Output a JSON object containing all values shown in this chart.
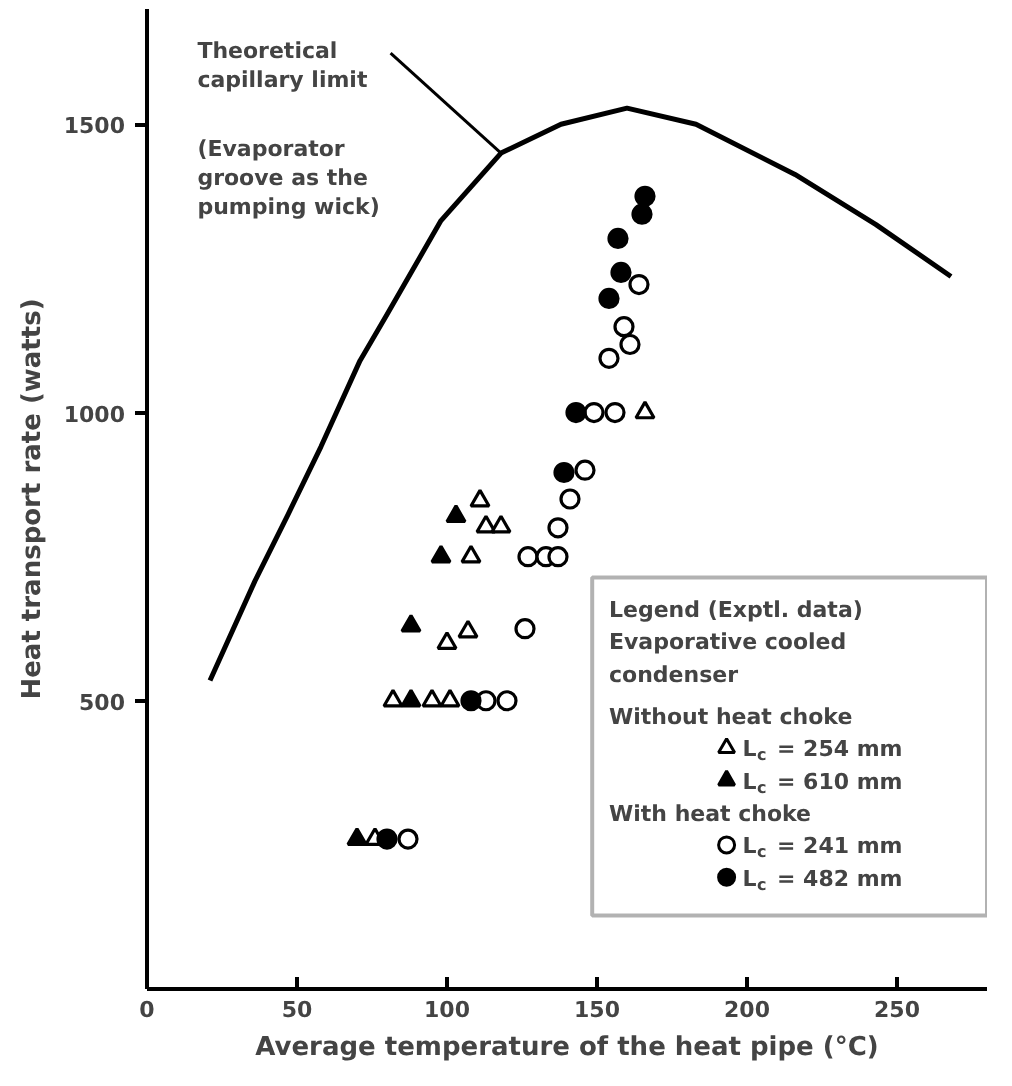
{
  "chart_data": {
    "type": "scatter",
    "xlabel": "Average temperature of the heat pipe (°C)",
    "ylabel": "Heat transport rate (watts)",
    "xlim": [
      0,
      280
    ],
    "ylim": [
      0,
      1700
    ],
    "xticks": [
      0,
      50,
      100,
      150,
      200,
      250
    ],
    "yticks": [
      500,
      1000,
      1500
    ],
    "grid": false,
    "legend": "bottom right",
    "legend_title": "Legend (Exptl. data)",
    "annotations": [
      {
        "text": "Theoretical capillary limit",
        "x": 118,
        "y": 1450
      },
      "(Evaporator groove as the pumping wick)",
      "Evaporative cooled condenser",
      "Without heat choke",
      "With heat choke"
    ],
    "series": [
      {
        "type": "line",
        "color": "#000000",
        "x": [
          21,
          36,
          47,
          58,
          71,
          80,
          98,
          118,
          138,
          160,
          183,
          216,
          243,
          268
        ],
        "values": [
          535,
          708,
          823,
          941,
          1090,
          1170,
          1333,
          1450,
          1500,
          1528,
          1500,
          1413,
          1326,
          1236
        ]
      },
      {
        "name": "L$_{c}$ = 254 mm",
        "color": "#000000",
        "marker": "triangle-open",
        "x": [
          76,
          82,
          95,
          101,
          100,
          107,
          108,
          111,
          113,
          118,
          166
        ],
        "values": [
          260,
          500,
          500,
          500,
          600,
          620,
          750,
          847,
          802,
          802,
          1000
        ]
      },
      {
        "name": "L$_{c}$ = 610 mm",
        "color": "#000000",
        "marker": "triangle",
        "x": [
          70,
          88,
          88,
          98,
          103
        ],
        "values": [
          260,
          500,
          630,
          750,
          820
        ]
      },
      {
        "name": "L$_{c}$ = 241 mm",
        "color": "#000000",
        "marker": "circle-open",
        "x": [
          87,
          113,
          120,
          126,
          127,
          133,
          137,
          137,
          141,
          146,
          149,
          156,
          154,
          161,
          159,
          164
        ],
        "values": [
          260,
          500,
          500,
          625,
          750,
          750,
          750,
          800,
          850,
          900,
          1000,
          1000,
          1094,
          1118,
          1149,
          1222
        ]
      },
      {
        "name": "L$_{c}$ = 482 mm",
        "color": "#000000",
        "marker": "circle",
        "x": [
          80,
          108,
          139,
          143,
          154,
          158,
          157,
          165,
          166
        ],
        "values": [
          260,
          500,
          896,
          1000,
          1198,
          1243,
          1302,
          1344,
          1375
        ]
      }
    ]
  }
}
